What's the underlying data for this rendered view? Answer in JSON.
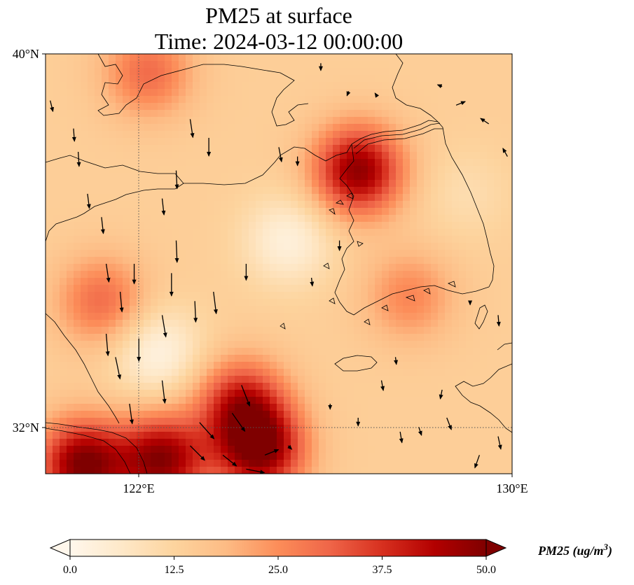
{
  "title": {
    "line1": "PM25 at surface",
    "line2": "Time: 2024-03-12 00:00:00"
  },
  "axes": {
    "lat_ticks": [
      {
        "value": 40,
        "label": "40°N"
      },
      {
        "value": 32,
        "label": "32°N"
      }
    ],
    "lon_ticks": [
      {
        "value": 122,
        "label": "122°E"
      },
      {
        "value": 130,
        "label": "130°E"
      }
    ],
    "lon_range": [
      120,
      130
    ],
    "lat_range": [
      31,
      40
    ],
    "gridlines": "dotted at 122°E and 32°N"
  },
  "colorbar": {
    "label_main": "PM25 (ug/m",
    "label_sup": "3",
    "label_close": ")",
    "ticks": [
      "0.0",
      "12.5",
      "25.0",
      "37.5",
      "50.0"
    ],
    "range": [
      0,
      50
    ],
    "extend": "both",
    "colormap": "OrRd",
    "colors": [
      "#fff7ec",
      "#fee8c8",
      "#fdd49e",
      "#fdbb84",
      "#fc8d59",
      "#ef6548",
      "#d7301f",
      "#b30000",
      "#7f0000"
    ]
  },
  "chart_data": {
    "type": "heatmap",
    "variable": "PM25",
    "units": "ug/m3",
    "field_features": [
      {
        "lon": 120.8,
        "lat": 31.2,
        "value": 50
      },
      {
        "lon": 122.5,
        "lat": 31.3,
        "value": 48
      },
      {
        "lon": 124.6,
        "lat": 31.5,
        "value": 48
      },
      {
        "lon": 124.2,
        "lat": 32.5,
        "value": 40
      },
      {
        "lon": 121.2,
        "lat": 34.7,
        "value": 30
      },
      {
        "lon": 122.2,
        "lat": 39.6,
        "value": 30
      },
      {
        "lon": 126.7,
        "lat": 37.5,
        "value": 48
      },
      {
        "lon": 127.8,
        "lat": 34.8,
        "value": 26
      },
      {
        "lon": 122.4,
        "lat": 33.6,
        "value": 2
      },
      {
        "lon": 125.2,
        "lat": 36.0,
        "value": 3
      },
      {
        "lon": 129.0,
        "lat": 37.0,
        "value": 10
      }
    ],
    "wind_vectors": [
      {
        "lon": 120.1,
        "lat": 39.0,
        "u": 0.3,
        "v": -1.2
      },
      {
        "lon": 120.6,
        "lat": 38.4,
        "u": 0.1,
        "v": -1.4
      },
      {
        "lon": 120.7,
        "lat": 37.9,
        "u": 0.1,
        "v": -1.6
      },
      {
        "lon": 120.9,
        "lat": 37.0,
        "u": 0.2,
        "v": -1.6
      },
      {
        "lon": 121.2,
        "lat": 36.5,
        "u": 0.2,
        "v": -1.8
      },
      {
        "lon": 121.3,
        "lat": 35.5,
        "u": 0.3,
        "v": -2.0
      },
      {
        "lon": 121.6,
        "lat": 34.9,
        "u": 0.2,
        "v": -2.2
      },
      {
        "lon": 121.3,
        "lat": 34.0,
        "u": 0.2,
        "v": -2.4
      },
      {
        "lon": 121.5,
        "lat": 33.5,
        "u": 0.5,
        "v": -2.4
      },
      {
        "lon": 121.8,
        "lat": 32.5,
        "u": 0.3,
        "v": -2.2
      },
      {
        "lon": 121.9,
        "lat": 35.5,
        "u": 0.0,
        "v": -2.2
      },
      {
        "lon": 122.0,
        "lat": 33.9,
        "u": 0.0,
        "v": -2.5
      },
      {
        "lon": 122.5,
        "lat": 36.9,
        "u": 0.2,
        "v": -1.8
      },
      {
        "lon": 122.8,
        "lat": 37.5,
        "u": 0.1,
        "v": -2.0
      },
      {
        "lon": 122.8,
        "lat": 36.0,
        "u": 0.1,
        "v": -2.4
      },
      {
        "lon": 122.7,
        "lat": 35.3,
        "u": 0.0,
        "v": -2.5
      },
      {
        "lon": 122.5,
        "lat": 34.4,
        "u": 0.4,
        "v": -2.4
      },
      {
        "lon": 122.5,
        "lat": 33.0,
        "u": 0.3,
        "v": -2.5
      },
      {
        "lon": 123.1,
        "lat": 38.6,
        "u": 0.3,
        "v": -2.0
      },
      {
        "lon": 123.5,
        "lat": 38.2,
        "u": 0.0,
        "v": -2.0
      },
      {
        "lon": 123.2,
        "lat": 34.7,
        "u": 0.1,
        "v": -2.3
      },
      {
        "lon": 123.6,
        "lat": 34.9,
        "u": 0.3,
        "v": -2.4
      },
      {
        "lon": 124.3,
        "lat": 35.5,
        "u": 0.0,
        "v": -1.8
      },
      {
        "lon": 124.2,
        "lat": 32.9,
        "u": 0.9,
        "v": -2.3
      },
      {
        "lon": 124.0,
        "lat": 32.3,
        "u": 1.4,
        "v": -2.0
      },
      {
        "lon": 123.3,
        "lat": 32.1,
        "u": 1.6,
        "v": -1.8
      },
      {
        "lon": 123.1,
        "lat": 31.6,
        "u": 1.6,
        "v": -1.6
      },
      {
        "lon": 123.8,
        "lat": 31.4,
        "u": 1.5,
        "v": -1.2
      },
      {
        "lon": 124.3,
        "lat": 31.1,
        "u": 2.0,
        "v": -0.4
      },
      {
        "lon": 124.7,
        "lat": 31.4,
        "u": 1.5,
        "v": 0.6
      },
      {
        "lon": 125.0,
        "lat": 38.0,
        "u": 0.3,
        "v": -1.6
      },
      {
        "lon": 125.4,
        "lat": 37.8,
        "u": 0.0,
        "v": -1.0
      },
      {
        "lon": 126.3,
        "lat": 36.0,
        "u": 0.0,
        "v": -1.1
      },
      {
        "lon": 125.7,
        "lat": 35.2,
        "u": 0.1,
        "v": -0.9
      },
      {
        "lon": 125.9,
        "lat": 39.8,
        "u": 0.0,
        "v": -0.8
      },
      {
        "lon": 126.5,
        "lat": 39.2,
        "u": -0.2,
        "v": -0.5
      },
      {
        "lon": 127.1,
        "lat": 39.1,
        "u": -0.2,
        "v": 0.3
      },
      {
        "lon": 128.5,
        "lat": 39.3,
        "u": -0.5,
        "v": 0.2
      },
      {
        "lon": 128.8,
        "lat": 38.9,
        "u": 1.0,
        "v": 0.4
      },
      {
        "lon": 129.5,
        "lat": 38.5,
        "u": -0.9,
        "v": 0.6
      },
      {
        "lon": 129.9,
        "lat": 37.8,
        "u": -0.5,
        "v": 0.9
      },
      {
        "lon": 129.7,
        "lat": 34.4,
        "u": 0.1,
        "v": -1.2
      },
      {
        "lon": 129.1,
        "lat": 34.7,
        "u": 0.0,
        "v": -0.4
      },
      {
        "lon": 127.5,
        "lat": 33.5,
        "u": 0.1,
        "v": -0.8
      },
      {
        "lon": 127.2,
        "lat": 33.0,
        "u": 0.2,
        "v": -1.1
      },
      {
        "lon": 128.0,
        "lat": 32.0,
        "u": 0.3,
        "v": -0.9
      },
      {
        "lon": 127.6,
        "lat": 31.9,
        "u": 0.2,
        "v": -1.2
      },
      {
        "lon": 128.5,
        "lat": 32.8,
        "u": -0.2,
        "v": -1.0
      },
      {
        "lon": 128.6,
        "lat": 32.2,
        "u": 0.5,
        "v": -1.3
      },
      {
        "lon": 129.7,
        "lat": 31.8,
        "u": 0.3,
        "v": -1.4
      },
      {
        "lon": 129.3,
        "lat": 31.4,
        "u": -0.5,
        "v": -1.4
      },
      {
        "lon": 126.7,
        "lat": 32.2,
        "u": 0.0,
        "v": -0.9
      },
      {
        "lon": 126.1,
        "lat": 32.5,
        "u": 0.0,
        "v": -0.6
      },
      {
        "lon": 125.2,
        "lat": 31.6,
        "u": 0.4,
        "v": -0.4
      }
    ]
  }
}
